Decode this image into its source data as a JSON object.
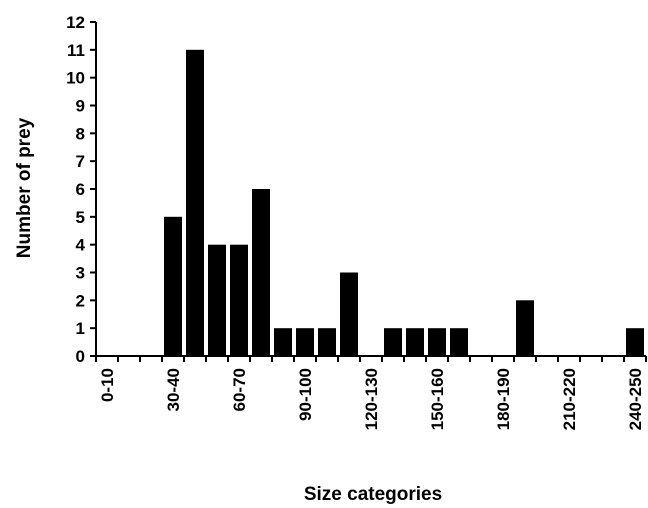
{
  "chart_data": {
    "type": "bar",
    "title": "",
    "xlabel": "Size categories",
    "ylabel": "Number of prey",
    "ylim": [
      0,
      12
    ],
    "yticks": [
      0,
      1,
      2,
      3,
      4,
      5,
      6,
      7,
      8,
      9,
      10,
      11,
      12
    ],
    "grid": false,
    "bar_color": "#000000",
    "categories": [
      "0-10",
      "10-20",
      "20-30",
      "30-40",
      "40-50",
      "50-60",
      "60-70",
      "70-80",
      "80-90",
      "90-100",
      "100-110",
      "110-120",
      "120-130",
      "130-140",
      "140-150",
      "150-160",
      "160-170",
      "170-180",
      "180-190",
      "190-200",
      "200-210",
      "210-220",
      "220-230",
      "230-240",
      "240-250"
    ],
    "tick_labels": [
      "0-10",
      "",
      "",
      "30-40",
      "",
      "",
      "60-70",
      "",
      "",
      "90-100",
      "",
      "",
      "120-130",
      "",
      "",
      "150-160",
      "",
      "",
      "180-190",
      "",
      "",
      "210-220",
      "",
      "",
      "240-250"
    ],
    "values": [
      0,
      0,
      0,
      5,
      11,
      4,
      4,
      6,
      1,
      1,
      1,
      3,
      0,
      1,
      1,
      1,
      1,
      0,
      0,
      2,
      0,
      0,
      0,
      0,
      1
    ]
  }
}
